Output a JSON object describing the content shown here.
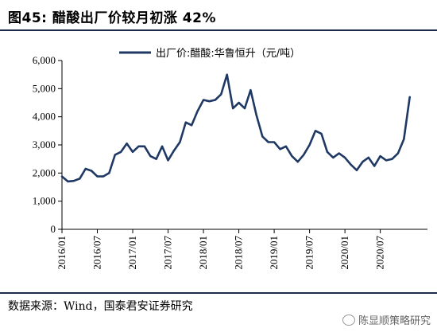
{
  "header": {
    "title": "图45: 醋酸出厂价较月初涨 42%"
  },
  "footer": {
    "source": "数据来源：Wind，国泰君安证券研究",
    "watermark": "陈显顺策略研究"
  },
  "colors": {
    "series": "#1f3864",
    "rule": "#1b2a4a"
  },
  "chart_data": {
    "type": "line",
    "title": "",
    "xlabel": "",
    "ylabel": "",
    "ylim": [
      0,
      6000
    ],
    "yticks": [
      0,
      1000,
      2000,
      3000,
      4000,
      5000,
      6000
    ],
    "ytick_labels": [
      "0",
      "1,000",
      "2,000",
      "3,000",
      "4,000",
      "5,000",
      "6,000"
    ],
    "xlim": [
      "2016/01",
      "2021/03"
    ],
    "xticks": [
      "2016/01",
      "2016/07",
      "2017/01",
      "2017/07",
      "2018/01",
      "2018/07",
      "2019/01",
      "2019/07",
      "2020/01",
      "2020/07"
    ],
    "grid": false,
    "legend": "top-center",
    "series": [
      {
        "name": "出厂价:醋酸:华鲁恒升（元/吨）",
        "points": [
          [
            "2016/01",
            1880
          ],
          [
            "2016/02",
            1700
          ],
          [
            "2016/03",
            1720
          ],
          [
            "2016/04",
            1800
          ],
          [
            "2016/05",
            2150
          ],
          [
            "2016/06",
            2080
          ],
          [
            "2016/07",
            1880
          ],
          [
            "2016/08",
            1880
          ],
          [
            "2016/09",
            2000
          ],
          [
            "2016/10",
            2650
          ],
          [
            "2016/11",
            2750
          ],
          [
            "2016/12",
            3050
          ],
          [
            "2017/01",
            2750
          ],
          [
            "2017/02",
            2950
          ],
          [
            "2017/03",
            2950
          ],
          [
            "2017/04",
            2600
          ],
          [
            "2017/05",
            2500
          ],
          [
            "2017/06",
            2950
          ],
          [
            "2017/07",
            2450
          ],
          [
            "2017/08",
            2800
          ],
          [
            "2017/09",
            3100
          ],
          [
            "2017/10",
            3800
          ],
          [
            "2017/11",
            3700
          ],
          [
            "2017/12",
            4200
          ],
          [
            "2018/01",
            4600
          ],
          [
            "2018/02",
            4550
          ],
          [
            "2018/03",
            4600
          ],
          [
            "2018/04",
            4800
          ],
          [
            "2018/05",
            5500
          ],
          [
            "2018/06",
            4300
          ],
          [
            "2018/07",
            4500
          ],
          [
            "2018/08",
            4300
          ],
          [
            "2018/09",
            4950
          ],
          [
            "2018/10",
            4050
          ],
          [
            "2018/11",
            3300
          ],
          [
            "2018/12",
            3100
          ],
          [
            "2019/01",
            3100
          ],
          [
            "2019/02",
            2850
          ],
          [
            "2019/03",
            2950
          ],
          [
            "2019/04",
            2600
          ],
          [
            "2019/05",
            2400
          ],
          [
            "2019/06",
            2650
          ],
          [
            "2019/07",
            3000
          ],
          [
            "2019/08",
            3500
          ],
          [
            "2019/09",
            3400
          ],
          [
            "2019/10",
            2750
          ],
          [
            "2019/11",
            2550
          ],
          [
            "2019/12",
            2700
          ],
          [
            "2020/01",
            2550
          ],
          [
            "2020/02",
            2300
          ],
          [
            "2020/03",
            2100
          ],
          [
            "2020/04",
            2400
          ],
          [
            "2020/05",
            2550
          ],
          [
            "2020/06",
            2250
          ],
          [
            "2020/07",
            2600
          ],
          [
            "2020/08",
            2450
          ],
          [
            "2020/09",
            2500
          ],
          [
            "2020/10",
            2700
          ],
          [
            "2020/11",
            3200
          ],
          [
            "2020/12",
            4700
          ]
        ]
      }
    ]
  }
}
